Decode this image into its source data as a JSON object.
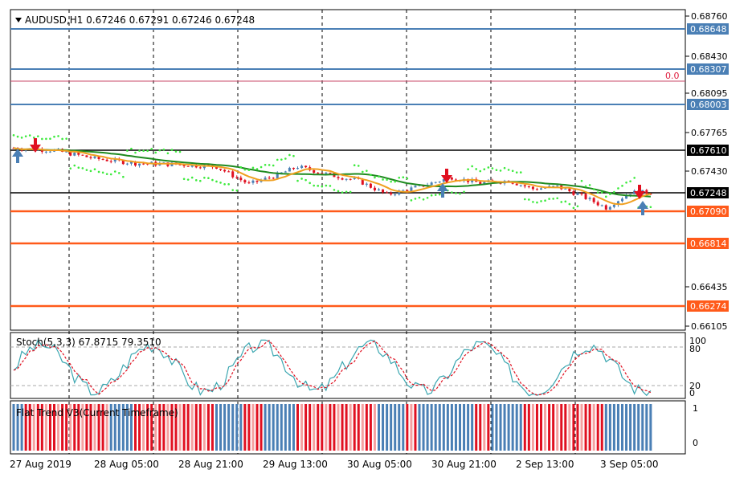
{
  "main_chart": {
    "title": "AUDUSD,H1  0.67246 0.67291 0.67246 0.67248",
    "price_labels": [
      "0.68760",
      "0.68430",
      "0.68095",
      "0.67765",
      "0.67430",
      "0.66435",
      "0.66105"
    ],
    "fib_label": "0.0",
    "horizontal_lines": [
      {
        "price": "0.68648",
        "color": "#4a7fb5",
        "tag_color": "#4a7fb5"
      },
      {
        "price": "0.68307",
        "color": "#4a7fb5",
        "tag_color": "#4a7fb5"
      },
      {
        "price": "0.68003",
        "color": "#4a7fb5",
        "tag_color": "#4a7fb5"
      },
      {
        "price": "0.67610",
        "color": "#000000",
        "tag_color": "#000000"
      },
      {
        "price": "0.67248",
        "color": "#000000",
        "tag_color": "#000000"
      },
      {
        "price": "0.67090",
        "color": "#ff5a1a",
        "tag_color": "#ff5a1a"
      },
      {
        "price": "0.66814",
        "color": "#ff5a1a",
        "tag_color": "#ff5a1a"
      },
      {
        "price": "0.66274",
        "color": "#ff5a1a",
        "tag_color": "#ff5a1a"
      }
    ]
  },
  "stoch_panel": {
    "title": "Stoch(5,3,3) 67.8715 79.3510",
    "levels": [
      "100",
      "80",
      "20",
      "0"
    ]
  },
  "trend_panel": {
    "title": "Flat Trend V3(Current Timeframe)",
    "levels": [
      "1",
      "0"
    ]
  },
  "time_axis": [
    "27 Aug 2019",
    "28 Aug 05:00",
    "28 Aug 21:00",
    "29 Aug 13:00",
    "30 Aug 05:00",
    "30 Aug 21:00",
    "2 Sep 13:00",
    "3 Sep 05:00"
  ],
  "colors": {
    "bull_candle": "#4a7fb5",
    "bear_candle": "#e01020",
    "ma_green": "#1f8a1f",
    "ma_orange": "#f0a020",
    "sar_dots": "#3dea3d",
    "stoch_main": "#3aa6b0",
    "stoch_signal": "#e01020",
    "trend_up": "#4a7fb5",
    "trend_down": "#e01020"
  }
}
